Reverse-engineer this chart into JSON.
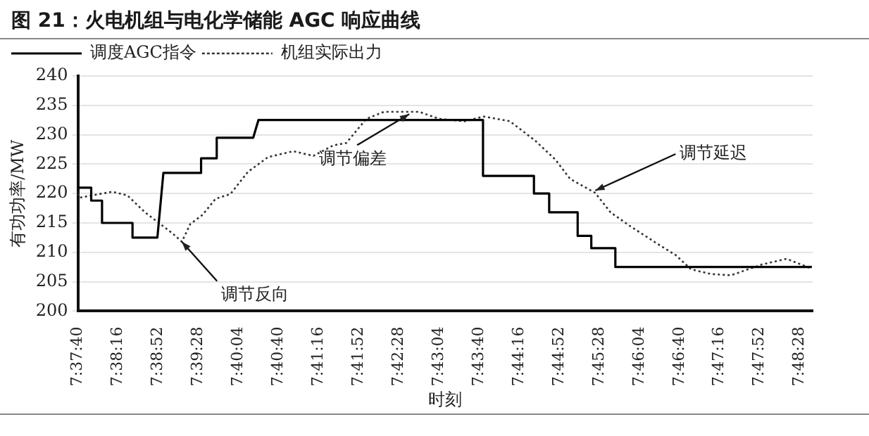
{
  "chart_data": {
    "type": "line",
    "title": "图 21：火电机组与电化学储能 AGC 响应曲线",
    "xlabel": "时刻",
    "ylabel": "有功功率/MW",
    "xlim": [
      7.62778,
      7.811
    ],
    "ylim": [
      200,
      240
    ],
    "yticks": [
      200,
      205,
      210,
      215,
      220,
      225,
      230,
      235,
      240
    ],
    "xticks": [
      {
        "value": 7.62778,
        "label": "7:37:40"
      },
      {
        "value": 7.63778,
        "label": "7:38:16"
      },
      {
        "value": 7.64778,
        "label": "7:38:52"
      },
      {
        "value": 7.65778,
        "label": "7:39:28"
      },
      {
        "value": 7.66778,
        "label": "7:40:04"
      },
      {
        "value": 7.67778,
        "label": "7:40:40"
      },
      {
        "value": 7.68778,
        "label": "7:41:16"
      },
      {
        "value": 7.69778,
        "label": "7:41:52"
      },
      {
        "value": 7.70778,
        "label": "7:42:28"
      },
      {
        "value": 7.71778,
        "label": "7:43:04"
      },
      {
        "value": 7.72778,
        "label": "7:43:40"
      },
      {
        "value": 7.73778,
        "label": "7:44:16"
      },
      {
        "value": 7.74778,
        "label": "7:44:52"
      },
      {
        "value": 7.75778,
        "label": "7:45:28"
      },
      {
        "value": 7.76778,
        "label": "7:46:04"
      },
      {
        "value": 7.77778,
        "label": "7:46:40"
      },
      {
        "value": 7.78778,
        "label": "7:47:16"
      },
      {
        "value": 7.79778,
        "label": "7:47:52"
      },
      {
        "value": 7.80778,
        "label": "7:48:28"
      }
    ],
    "grid": "y",
    "legend": "top",
    "marker": "none",
    "series": [
      {
        "name": "调度AGC指令",
        "color": "#000000",
        "line_style": "solid",
        "x": [
          7.6278,
          7.6311,
          7.6311,
          7.6338,
          7.6338,
          7.6414,
          7.6414,
          7.6476,
          7.6491,
          7.6585,
          7.6585,
          7.6624,
          7.6624,
          7.6715,
          7.6728,
          7.7288,
          7.7288,
          7.7415,
          7.7415,
          7.7453,
          7.7453,
          7.7524,
          7.7524,
          7.7558,
          7.7558,
          7.7618,
          7.7618,
          7.8108
        ],
        "values": [
          221,
          221,
          218.8,
          218.8,
          215,
          215,
          212.5,
          212.5,
          223.5,
          223.5,
          226,
          226,
          229.5,
          229.5,
          232.5,
          232.5,
          223,
          223,
          220,
          220,
          216.8,
          216.8,
          212.8,
          212.8,
          210.7,
          210.7,
          207.5,
          207.5
        ]
      },
      {
        "name": "机组实际出力",
        "color": "#333333",
        "line_style": "dotted",
        "x": [
          7.6278,
          7.6282,
          7.6363,
          7.6401,
          7.6445,
          7.6476,
          7.6514,
          7.6537,
          7.6558,
          7.6589,
          7.6621,
          7.6658,
          7.6702,
          7.6752,
          7.6815,
          7.6865,
          7.6915,
          7.6947,
          7.6997,
          7.7041,
          7.7104,
          7.7129,
          7.7179,
          7.7242,
          7.729,
          7.7355,
          7.7418,
          7.7468,
          7.7505,
          7.7568,
          7.7606,
          7.7656,
          7.7731,
          7.7769,
          7.7807,
          7.7857,
          7.7907,
          7.7982,
          7.8045,
          7.8108
        ],
        "values": [
          220,
          219.3,
          220.3,
          219.7,
          216.8,
          215.2,
          213.2,
          211.8,
          214.8,
          216.4,
          219.1,
          219.9,
          223.7,
          226.2,
          227.2,
          226.4,
          228.2,
          228.6,
          232.7,
          233.9,
          233.9,
          233.9,
          232.7,
          232.3,
          233.1,
          232.3,
          229,
          225.8,
          222.5,
          220.1,
          216.8,
          214.4,
          211.1,
          209.5,
          207.1,
          206.3,
          206.1,
          207.9,
          208.9,
          207.2
        ]
      }
    ],
    "annotations": [
      {
        "text": "调节反向",
        "x": 7.6537,
        "y": 211.8
      },
      {
        "text": "调节偏差",
        "x": 7.7104,
        "y": 233.5
      },
      {
        "text": "调节延迟",
        "x": 7.7568,
        "y": 220.5
      }
    ]
  }
}
